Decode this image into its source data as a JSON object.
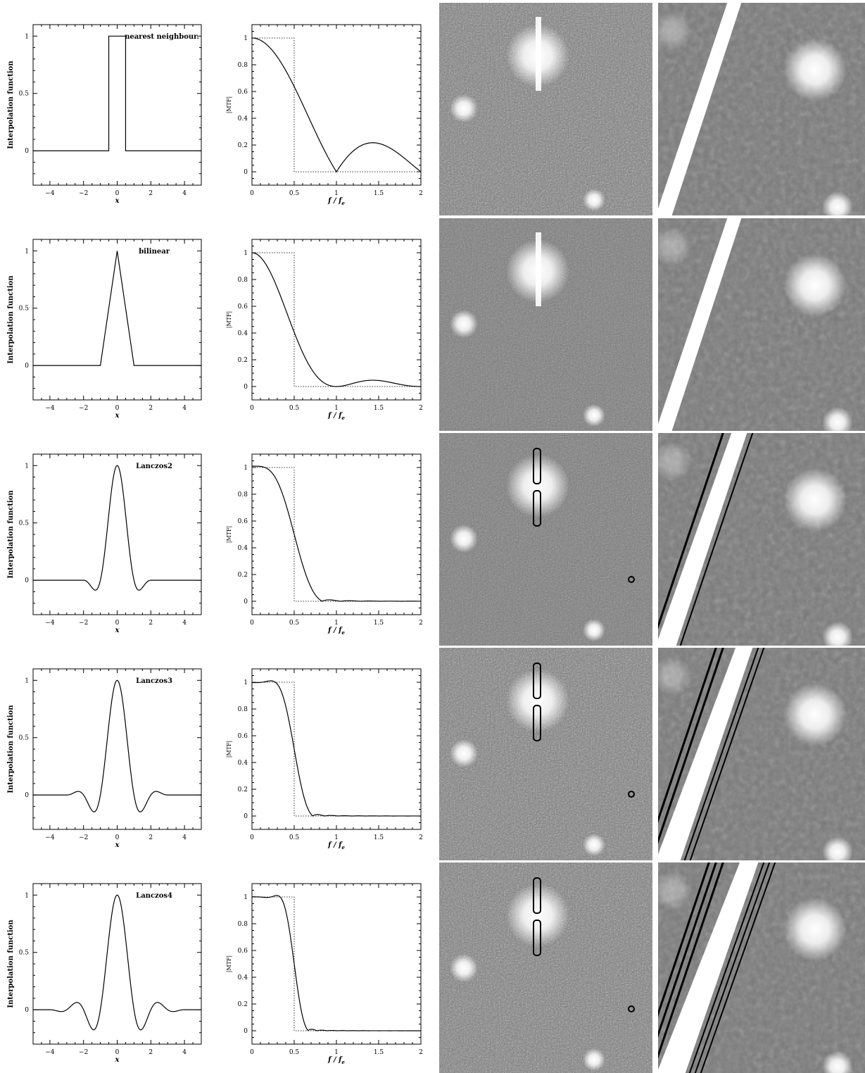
{
  "colors": {
    "axis": "#000000",
    "curve": "#000000",
    "ideal": "#333333",
    "background": "#ffffff"
  },
  "image_panels": [
    "noisy-field-image",
    "streak-and-star-image"
  ],
  "chart_data": [
    {
      "type": "line",
      "kernel": "box",
      "title": "nearest neighbour.",
      "xlabel": "x",
      "ylabel": "Interpolation function",
      "xlim": [
        -5,
        5
      ],
      "ylim": [
        -0.3,
        1.1
      ],
      "xticks": [
        "−4",
        "−2",
        "0",
        "2",
        "4"
      ],
      "yticks": [
        "0",
        "0.5",
        "1"
      ]
    },
    {
      "type": "line",
      "kernel": "box",
      "title": "",
      "xlabel": "f / f_e",
      "ylabel": "|MTF|",
      "xlim": [
        0,
        2
      ],
      "ylim": [
        -0.1,
        1.1
      ],
      "xticks": [
        "0",
        "0.5",
        "1",
        "1.5",
        "2"
      ],
      "yticks": [
        "0",
        "0.2",
        "0.4",
        "0.6",
        "0.8",
        "1"
      ],
      "ideal_cutoff": 0.5
    },
    {
      "type": "line",
      "kernel": "triangle",
      "title": "bilinear",
      "xlabel": "x",
      "ylabel": "Interpolation function",
      "xlim": [
        -5,
        5
      ],
      "ylim": [
        -0.3,
        1.1
      ],
      "xticks": [
        "−4",
        "−2",
        "0",
        "2",
        "4"
      ],
      "yticks": [
        "0",
        "0.5",
        "1"
      ]
    },
    {
      "type": "line",
      "kernel": "triangle",
      "title": "",
      "xlabel": "f / f_e",
      "ylabel": "|MTF|",
      "xlim": [
        0,
        2
      ],
      "ylim": [
        -0.1,
        1.1
      ],
      "xticks": [
        "0",
        "0.5",
        "1",
        "1.5",
        "2"
      ],
      "yticks": [
        "0",
        "0.2",
        "0.4",
        "0.6",
        "0.8",
        "1"
      ],
      "ideal_cutoff": 0.5
    },
    {
      "type": "line",
      "kernel": "lanczos",
      "a": 2,
      "title": "Lanczos2",
      "xlabel": "x",
      "ylabel": "Interpolation function",
      "xlim": [
        -5,
        5
      ],
      "ylim": [
        -0.3,
        1.1
      ],
      "xticks": [
        "−4",
        "−2",
        "0",
        "2",
        "4"
      ],
      "yticks": [
        "0",
        "0.5",
        "1"
      ]
    },
    {
      "type": "line",
      "kernel": "lanczos",
      "a": 2,
      "title": "",
      "xlabel": "f / f_e",
      "ylabel": "|MTF|",
      "xlim": [
        0,
        2
      ],
      "ylim": [
        -0.1,
        1.1
      ],
      "xticks": [
        "0",
        "0.5",
        "1",
        "1.5",
        "2"
      ],
      "yticks": [
        "0",
        "0.2",
        "0.4",
        "0.6",
        "0.8",
        "1"
      ],
      "ideal_cutoff": 0.5
    },
    {
      "type": "line",
      "kernel": "lanczos",
      "a": 3,
      "title": "Lanczos3",
      "xlabel": "x",
      "ylabel": "Interpolation function",
      "xlim": [
        -5,
        5
      ],
      "ylim": [
        -0.3,
        1.1
      ],
      "xticks": [
        "−4",
        "−2",
        "0",
        "2",
        "4"
      ],
      "yticks": [
        "0",
        "0.5",
        "1"
      ]
    },
    {
      "type": "line",
      "kernel": "lanczos",
      "a": 3,
      "title": "",
      "xlabel": "f / f_e",
      "ylabel": "|MTF|",
      "xlim": [
        0,
        2
      ],
      "ylim": [
        -0.1,
        1.1
      ],
      "xticks": [
        "0",
        "0.5",
        "1",
        "1.5",
        "2"
      ],
      "yticks": [
        "0",
        "0.2",
        "0.4",
        "0.6",
        "0.8",
        "1"
      ],
      "ideal_cutoff": 0.5
    },
    {
      "type": "line",
      "kernel": "lanczos",
      "a": 4,
      "title": "Lanczos4",
      "xlabel": "x",
      "ylabel": "Interpolation function",
      "xlim": [
        -5,
        5
      ],
      "ylim": [
        -0.3,
        1.1
      ],
      "xticks": [
        "−4",
        "−2",
        "0",
        "2",
        "4"
      ],
      "yticks": [
        "0",
        "0.5",
        "1"
      ]
    },
    {
      "type": "line",
      "kernel": "lanczos",
      "a": 4,
      "title": "",
      "xlabel": "f / f_e",
      "ylabel": "|MTF|",
      "xlim": [
        0,
        2
      ],
      "ylim": [
        -0.1,
        1.1
      ],
      "xticks": [
        "0",
        "0.5",
        "1",
        "1.5",
        "2"
      ],
      "yticks": [
        "0",
        "0.2",
        "0.4",
        "0.6",
        "0.8",
        "1"
      ],
      "ideal_cutoff": 0.5
    }
  ]
}
